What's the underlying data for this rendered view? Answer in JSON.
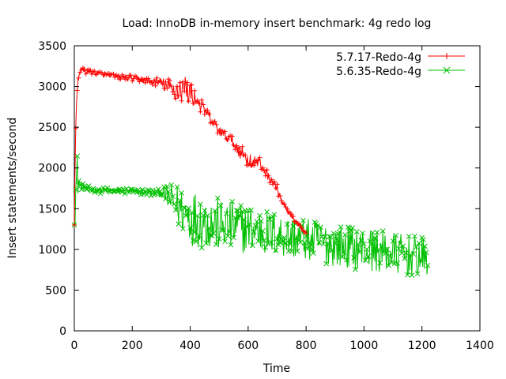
{
  "chart_data": {
    "type": "line",
    "title": "Load: InnoDB in-memory insert benchmark: 4g redo log",
    "xlabel": "Time",
    "ylabel": "Insert statements/second",
    "xlim": [
      0,
      1400
    ],
    "ylim": [
      0,
      3500
    ],
    "xticks": [
      0,
      200,
      400,
      600,
      800,
      1000,
      1200,
      1400
    ],
    "yticks": [
      0,
      500,
      1000,
      1500,
      2000,
      2500,
      3000,
      3500
    ],
    "grid": false,
    "legend_position": "top-right",
    "series": [
      {
        "name": "5.7.17-Redo-4g",
        "color": "#ff0000",
        "marker": "plus",
        "x": [
          0,
          5,
          10,
          15,
          20,
          50,
          100,
          150,
          200,
          250,
          300,
          340,
          380,
          400,
          420,
          450,
          480,
          500,
          540,
          560,
          600,
          640,
          660,
          700,
          720,
          740,
          760,
          780,
          800
        ],
        "values": [
          1300,
          2500,
          3000,
          3150,
          3200,
          3180,
          3150,
          3120,
          3100,
          3070,
          3050,
          2950,
          2980,
          2920,
          2850,
          2700,
          2550,
          2450,
          2350,
          2250,
          2100,
          2050,
          1950,
          1750,
          1550,
          1450,
          1350,
          1270,
          1200
        ],
        "spread": [
          0,
          150,
          100,
          60,
          40,
          30,
          30,
          30,
          40,
          40,
          60,
          150,
          180,
          150,
          100,
          80,
          70,
          60,
          60,
          80,
          100,
          80,
          60,
          50,
          40,
          40,
          30,
          20,
          0
        ]
      },
      {
        "name": "5.6.35-Redo-4g",
        "color": "#00c000",
        "marker": "cross",
        "x": [
          0,
          5,
          10,
          20,
          50,
          100,
          150,
          200,
          250,
          300,
          320,
          350,
          400,
          450,
          500,
          600,
          700,
          800,
          900,
          1000,
          1100,
          1200,
          1220
        ],
        "values": [
          1300,
          1700,
          1900,
          1780,
          1740,
          1720,
          1720,
          1710,
          1700,
          1690,
          1650,
          1550,
          1400,
          1350,
          1300,
          1250,
          1180,
          1120,
          1050,
          1000,
          950,
          900,
          870
        ],
        "spread": [
          0,
          400,
          300,
          40,
          40,
          40,
          40,
          40,
          40,
          50,
          150,
          250,
          350,
          350,
          330,
          300,
          280,
          260,
          260,
          260,
          260,
          250,
          200
        ]
      }
    ]
  }
}
